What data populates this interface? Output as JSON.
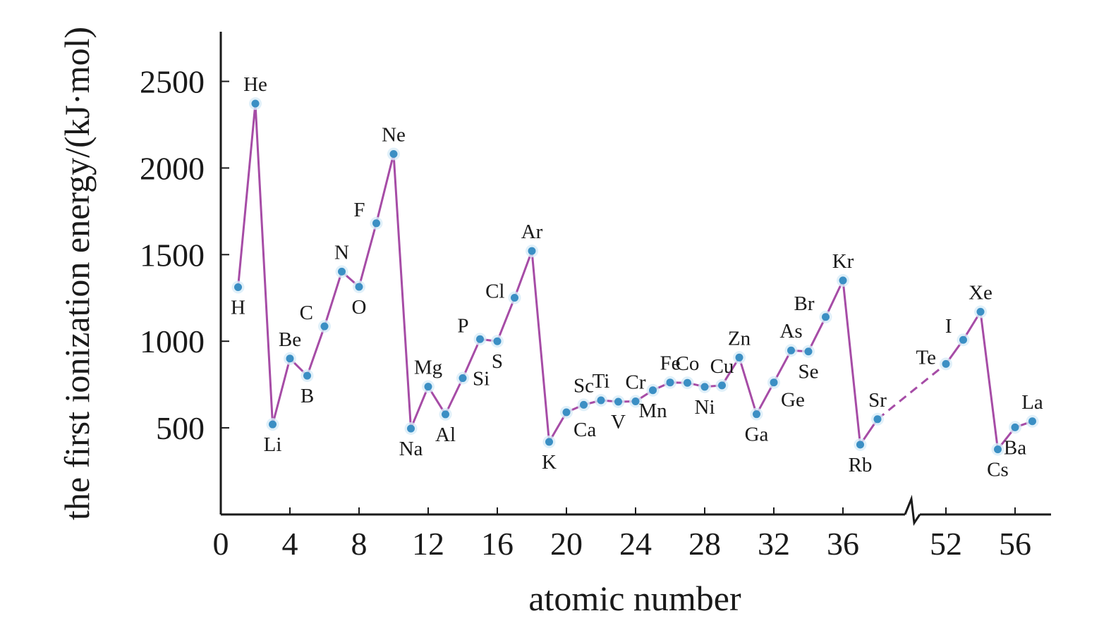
{
  "chart_data": {
    "type": "line",
    "xlabel": "atomic number",
    "ylabel": "the first ionization energy/(kJ·mol)",
    "ylim": [
      0,
      2750
    ],
    "x_ticks": [
      "0",
      "4",
      "8",
      "12",
      "16",
      "20",
      "24",
      "28",
      "32",
      "36",
      "52",
      "56"
    ],
    "y_ticks": [
      "500",
      "1000",
      "1500",
      "2000",
      "2500"
    ],
    "axis_break_after": 38,
    "axis_break_before": 52,
    "colors": {
      "line": "#a64ca6",
      "point": "#3b8fc4",
      "axis": "#1a1a1a"
    },
    "points": [
      {
        "label": "H",
        "x": 1,
        "y": 1312,
        "pos": "below"
      },
      {
        "label": "He",
        "x": 2,
        "y": 2372,
        "pos": "above"
      },
      {
        "label": "Li",
        "x": 3,
        "y": 520,
        "pos": "below"
      },
      {
        "label": "Be",
        "x": 4,
        "y": 900,
        "pos": "above"
      },
      {
        "label": "B",
        "x": 5,
        "y": 801,
        "pos": "below"
      },
      {
        "label": "C",
        "x": 6,
        "y": 1086,
        "pos": "above-left"
      },
      {
        "label": "N",
        "x": 7,
        "y": 1402,
        "pos": "above"
      },
      {
        "label": "O",
        "x": 8,
        "y": 1314,
        "pos": "below"
      },
      {
        "label": "F",
        "x": 9,
        "y": 1681,
        "pos": "above-left"
      },
      {
        "label": "Ne",
        "x": 10,
        "y": 2081,
        "pos": "above"
      },
      {
        "label": "Na",
        "x": 11,
        "y": 496,
        "pos": "below"
      },
      {
        "label": "Mg",
        "x": 12,
        "y": 738,
        "pos": "above"
      },
      {
        "label": "Al",
        "x": 13,
        "y": 578,
        "pos": "below"
      },
      {
        "label": "Si",
        "x": 14,
        "y": 787,
        "pos": "right"
      },
      {
        "label": "P",
        "x": 15,
        "y": 1012,
        "pos": "above-left"
      },
      {
        "label": "S",
        "x": 16,
        "y": 1000,
        "pos": "below"
      },
      {
        "label": "Cl",
        "x": 17,
        "y": 1251,
        "pos": "left"
      },
      {
        "label": "Ar",
        "x": 18,
        "y": 1521,
        "pos": "above"
      },
      {
        "label": "K",
        "x": 19,
        "y": 419,
        "pos": "below"
      },
      {
        "label": "Ca",
        "x": 20,
        "y": 590,
        "pos": "below-right"
      },
      {
        "label": "Sc",
        "x": 21,
        "y": 633,
        "pos": "above"
      },
      {
        "label": "Ti",
        "x": 22,
        "y": 659,
        "pos": "above"
      },
      {
        "label": "V",
        "x": 23,
        "y": 651,
        "pos": "below"
      },
      {
        "label": "Cr",
        "x": 24,
        "y": 653,
        "pos": "above"
      },
      {
        "label": "Mn",
        "x": 25,
        "y": 717,
        "pos": "below"
      },
      {
        "label": "Fe",
        "x": 26,
        "y": 762,
        "pos": "above"
      },
      {
        "label": "Co",
        "x": 27,
        "y": 760,
        "pos": "above"
      },
      {
        "label": "Ni",
        "x": 28,
        "y": 737,
        "pos": "below"
      },
      {
        "label": "Cu",
        "x": 29,
        "y": 745,
        "pos": "above"
      },
      {
        "label": "Zn",
        "x": 30,
        "y": 906,
        "pos": "above"
      },
      {
        "label": "Ga",
        "x": 31,
        "y": 579,
        "pos": "below"
      },
      {
        "label": "Ge",
        "x": 32,
        "y": 762,
        "pos": "below-right"
      },
      {
        "label": "As",
        "x": 33,
        "y": 947,
        "pos": "above"
      },
      {
        "label": "Se",
        "x": 34,
        "y": 941,
        "pos": "below"
      },
      {
        "label": "Br",
        "x": 35,
        "y": 1140,
        "pos": "above-left"
      },
      {
        "label": "Kr",
        "x": 36,
        "y": 1351,
        "pos": "above"
      },
      {
        "label": "Rb",
        "x": 37,
        "y": 403,
        "pos": "below"
      },
      {
        "label": "Sr",
        "x": 38,
        "y": 550,
        "pos": "above"
      },
      {
        "label": "Te",
        "x": 52,
        "y": 869,
        "pos": "left"
      },
      {
        "label": "I",
        "x": 53,
        "y": 1008,
        "pos": "above-left"
      },
      {
        "label": "Xe",
        "x": 54,
        "y": 1170,
        "pos": "above"
      },
      {
        "label": "Cs",
        "x": 55,
        "y": 376,
        "pos": "below"
      },
      {
        "label": "Ba",
        "x": 56,
        "y": 503,
        "pos": "below"
      },
      {
        "label": "La",
        "x": 57,
        "y": 538,
        "pos": "above"
      }
    ]
  }
}
